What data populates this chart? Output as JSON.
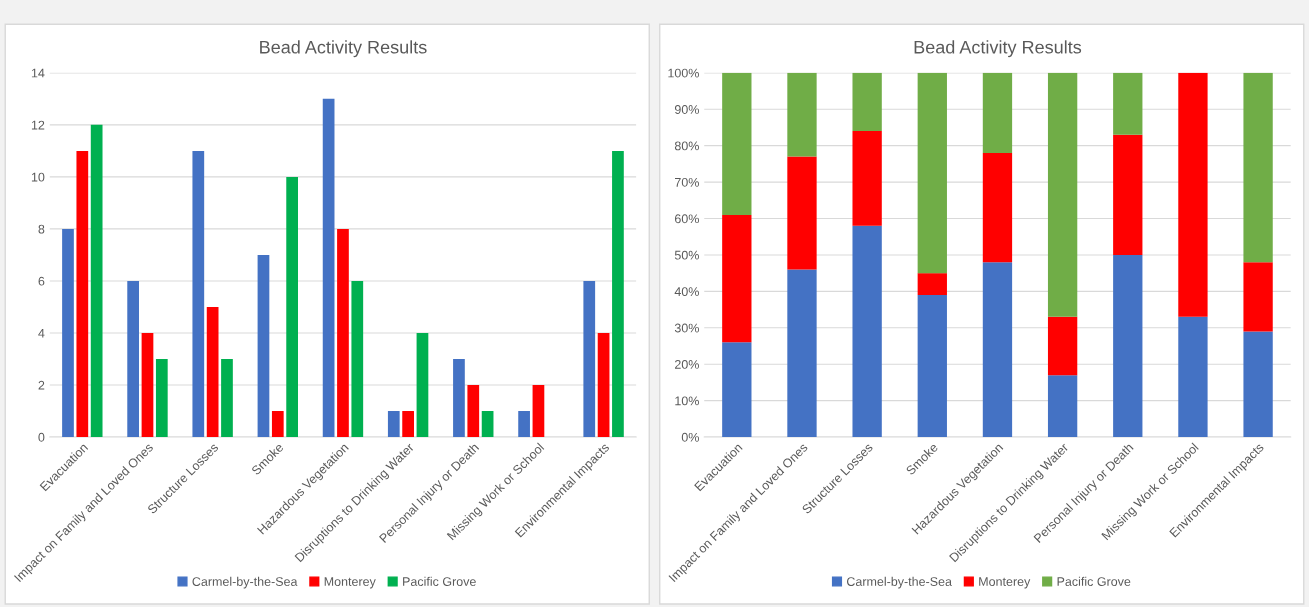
{
  "chart_data": [
    {
      "type": "bar",
      "title": "Bead Activity Results",
      "categories": [
        "Evacuation",
        "Impact on Family and Loved Ones",
        "Structure Losses",
        "Smoke",
        "Hazardous Vegetation",
        "Disruptions to Drinking Water",
        "Personal Injury or Death",
        "Missing Work or School",
        "Environmental Impacts"
      ],
      "series": [
        {
          "name": "Carmel-by-the-Sea",
          "color": "#4472c4",
          "values": [
            8,
            6,
            11,
            7,
            13,
            1,
            3,
            1,
            6
          ]
        },
        {
          "name": "Monterey",
          "color": "#ff0000",
          "values": [
            11,
            4,
            5,
            1,
            8,
            1,
            2,
            2,
            4
          ]
        },
        {
          "name": "Pacific Grove",
          "color": "#00b050",
          "values": [
            12,
            3,
            3,
            10,
            6,
            4,
            1,
            0,
            11
          ]
        }
      ],
      "ylim": [
        0,
        14
      ],
      "yticks": [
        0,
        2,
        4,
        6,
        8,
        10,
        12,
        14
      ],
      "grid": "y",
      "legend": "bottom"
    },
    {
      "type": "bar",
      "title": "Bead Activity Results",
      "stacked": true,
      "categories": [
        "Evacuation",
        "Impact on Family and Loved Ones",
        "Structure Losses",
        "Smoke",
        "Hazardous Vegetation",
        "Disruptions to Drinking Water",
        "Personal Injury or Death",
        "Missing Work or School",
        "Environmental Impacts"
      ],
      "series": [
        {
          "name": "Carmel-by-the-Sea",
          "color": "#4472c4",
          "values": [
            26,
            46,
            58,
            39,
            48,
            17,
            50,
            33,
            29
          ]
        },
        {
          "name": "Monterey",
          "color": "#ff0000",
          "values": [
            35,
            31,
            26,
            6,
            30,
            16,
            33,
            67,
            19
          ]
        },
        {
          "name": "Pacific Grove",
          "color": "#70ad47",
          "values": [
            39,
            23,
            16,
            55,
            22,
            67,
            17,
            0,
            52
          ]
        }
      ],
      "ylim": [
        0,
        100
      ],
      "yticks": [
        {
          "value": 0,
          "label": "0%"
        },
        {
          "value": 10,
          "label": "10%"
        },
        {
          "value": 20,
          "label": "20%"
        },
        {
          "value": 30,
          "label": "30%"
        },
        {
          "value": 40,
          "label": "40%"
        },
        {
          "value": 50,
          "label": "50%"
        },
        {
          "value": 60,
          "label": "60%"
        },
        {
          "value": 70,
          "label": "70%"
        },
        {
          "value": 80,
          "label": "80%"
        },
        {
          "value": 90,
          "label": "90%"
        },
        {
          "value": 100,
          "label": "100%"
        }
      ],
      "grid": "y",
      "legend": "bottom"
    }
  ]
}
